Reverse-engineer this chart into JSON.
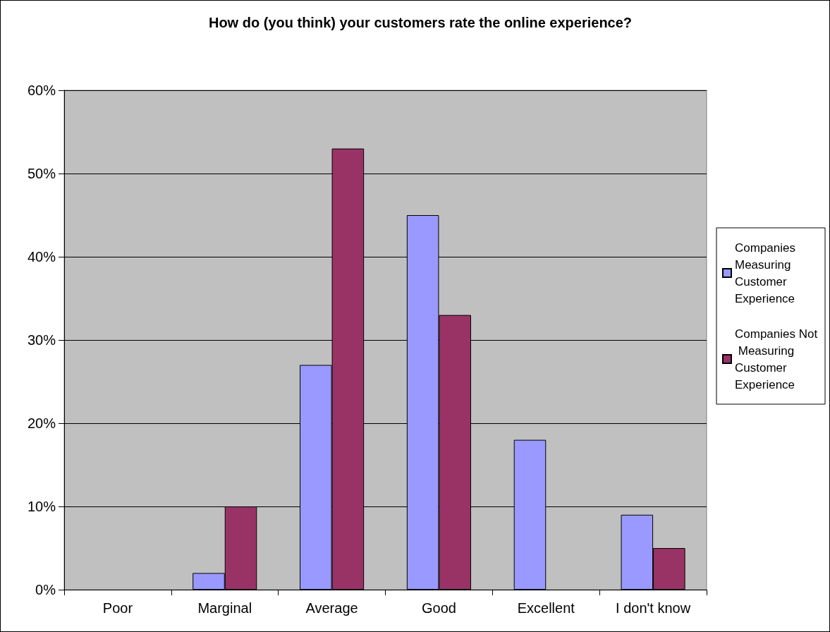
{
  "chart_data": {
    "type": "bar",
    "title": "How do (you think) your customers rate the online experience?",
    "categories": [
      "Poor",
      "Marginal",
      "Average",
      "Good",
      "Excellent",
      "I don't know"
    ],
    "series": [
      {
        "name": "Companies Measuring Customer Experience",
        "color": "#9999ff",
        "values": [
          0,
          2,
          27,
          45,
          18,
          9
        ]
      },
      {
        "name": "Companies Not Measuring Customer Experience",
        "color": "#993366",
        "values": [
          0,
          10,
          53,
          33,
          0,
          5
        ]
      }
    ],
    "ylim": [
      0,
      60
    ],
    "yticks": [
      {
        "value": 0,
        "label": "0%"
      },
      {
        "value": 10,
        "label": "10%"
      },
      {
        "value": 20,
        "label": "20%"
      },
      {
        "value": 30,
        "label": "30%"
      },
      {
        "value": 40,
        "label": "40%"
      },
      {
        "value": 50,
        "label": "50%"
      },
      {
        "value": 60,
        "label": "60%"
      }
    ],
    "grid": "y",
    "legend": "right"
  }
}
